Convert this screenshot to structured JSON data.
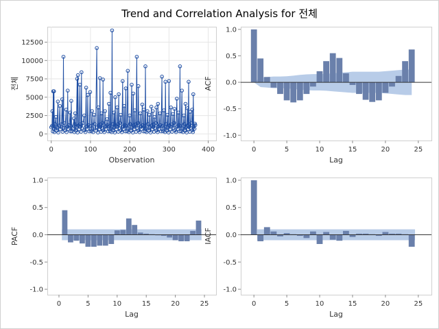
{
  "title": "Trend and Correlation Analysis for 전체",
  "chart_data": [
    {
      "id": "series",
      "type": "line",
      "xlabel": "Observation",
      "ylabel": "전체",
      "xlim": [
        -10,
        420
      ],
      "ylim": [
        -900,
        14600
      ],
      "xticks": [
        0,
        100,
        200,
        300,
        400
      ],
      "yticks": [
        0,
        2500,
        5000,
        7500,
        10000,
        12500
      ],
      "grid": true,
      "peaks": [
        [
          3,
          3100
        ],
        [
          5,
          5800
        ],
        [
          7,
          5800
        ],
        [
          12,
          2300
        ],
        [
          17,
          4400
        ],
        [
          22,
          3800
        ],
        [
          28,
          4700
        ],
        [
          31,
          10500
        ],
        [
          38,
          3300
        ],
        [
          42,
          5900
        ],
        [
          48,
          2900
        ],
        [
          51,
          4500
        ],
        [
          58,
          2100
        ],
        [
          61,
          2800
        ],
        [
          66,
          7500
        ],
        [
          68,
          8000
        ],
        [
          73,
          6700
        ],
        [
          77,
          8400
        ],
        [
          84,
          2500
        ],
        [
          89,
          6300
        ],
        [
          93,
          5300
        ],
        [
          99,
          5700
        ],
        [
          104,
          3100
        ],
        [
          109,
          2600
        ],
        [
          116,
          11700
        ],
        [
          120,
          3600
        ],
        [
          124,
          7600
        ],
        [
          128,
          2800
        ],
        [
          132,
          7400
        ],
        [
          137,
          3100
        ],
        [
          142,
          2000
        ],
        [
          147,
          4100
        ],
        [
          151,
          5600
        ],
        [
          155,
          14100
        ],
        [
          160,
          2900
        ],
        [
          163,
          5000
        ],
        [
          168,
          3600
        ],
        [
          172,
          5400
        ],
        [
          177,
          2600
        ],
        [
          182,
          7200
        ],
        [
          186,
          3800
        ],
        [
          190,
          6200
        ],
        [
          195,
          8600
        ],
        [
          200,
          2500
        ],
        [
          205,
          6700
        ],
        [
          209,
          5500
        ],
        [
          213,
          3200
        ],
        [
          218,
          10500
        ],
        [
          222,
          6500
        ],
        [
          227,
          2800
        ],
        [
          232,
          4000
        ],
        [
          236,
          3300
        ],
        [
          240,
          9200
        ],
        [
          245,
          3100
        ],
        [
          250,
          2600
        ],
        [
          255,
          3700
        ],
        [
          259,
          3100
        ],
        [
          263,
          2300
        ],
        [
          268,
          3600
        ],
        [
          272,
          4100
        ],
        [
          277,
          2800
        ],
        [
          282,
          7800
        ],
        [
          287,
          3200
        ],
        [
          291,
          7100
        ],
        [
          296,
          2600
        ],
        [
          300,
          7200
        ],
        [
          305,
          3600
        ],
        [
          310,
          2700
        ],
        [
          314,
          3400
        ],
        [
          320,
          4800
        ],
        [
          324,
          2900
        ],
        [
          328,
          9200
        ],
        [
          333,
          5900
        ],
        [
          338,
          2500
        ],
        [
          342,
          4100
        ],
        [
          347,
          3500
        ],
        [
          350,
          7100
        ],
        [
          354,
          3000
        ],
        [
          359,
          3300
        ],
        [
          362,
          5400
        ],
        [
          366,
          1400
        ]
      ],
      "baseline": [
        1100,
        350,
        750,
        250,
        1350,
        450,
        900,
        200,
        1150,
        650,
        1300,
        300,
        800,
        1500,
        500,
        250,
        1000,
        700,
        1200,
        350
      ]
    },
    {
      "id": "acf",
      "type": "bar",
      "xlabel": "Lag",
      "ylabel": "ACF",
      "xlim": [
        -2,
        27
      ],
      "ylim": [
        -1.1,
        1.05
      ],
      "xticks": [
        0,
        5,
        10,
        15,
        20,
        25
      ],
      "yticks": [
        -1.0,
        -0.5,
        0.0,
        0.5,
        1.0
      ],
      "lags": [
        0,
        1,
        2,
        3,
        4,
        5,
        6,
        7,
        8,
        9,
        10,
        11,
        12,
        13,
        14,
        15,
        16,
        17,
        18,
        19,
        20,
        21,
        22,
        23,
        24
      ],
      "values": [
        1.0,
        0.45,
        0.1,
        -0.1,
        -0.22,
        -0.34,
        -0.38,
        -0.34,
        -0.22,
        -0.08,
        0.21,
        0.4,
        0.55,
        0.46,
        0.17,
        -0.05,
        -0.22,
        -0.33,
        -0.37,
        -0.34,
        -0.2,
        -0.08,
        0.12,
        0.4,
        0.62
      ],
      "band_upper": [
        0.0,
        0.09,
        0.1,
        0.11,
        0.11,
        0.115,
        0.125,
        0.14,
        0.15,
        0.155,
        0.155,
        0.16,
        0.17,
        0.18,
        0.19,
        0.2,
        0.2,
        0.2,
        0.2,
        0.2,
        0.21,
        0.22,
        0.23,
        0.24,
        0.24
      ],
      "band_lower": [
        0.0,
        -0.09,
        -0.1,
        -0.11,
        -0.11,
        -0.115,
        -0.125,
        -0.14,
        -0.15,
        -0.155,
        -0.155,
        -0.16,
        -0.17,
        -0.18,
        -0.19,
        -0.2,
        -0.2,
        -0.2,
        -0.2,
        -0.2,
        -0.21,
        -0.22,
        -0.23,
        -0.24,
        -0.24
      ]
    },
    {
      "id": "pacf",
      "type": "bar",
      "xlabel": "Lag",
      "ylabel": "PACF",
      "xlim": [
        -2,
        27
      ],
      "ylim": [
        -1.1,
        1.05
      ],
      "xticks": [
        0,
        5,
        10,
        15,
        20,
        25
      ],
      "yticks": [
        -1.0,
        -0.5,
        0.0,
        0.5,
        1.0
      ],
      "lags": [
        1,
        2,
        3,
        4,
        5,
        6,
        7,
        8,
        9,
        10,
        11,
        12,
        13,
        14,
        15,
        16,
        17,
        18,
        19,
        20,
        21,
        22,
        23,
        24
      ],
      "values": [
        0.45,
        -0.14,
        -0.11,
        -0.16,
        -0.22,
        -0.22,
        -0.2,
        -0.2,
        -0.17,
        0.08,
        0.09,
        0.3,
        0.18,
        0.04,
        0.02,
        0.01,
        -0.01,
        -0.02,
        -0.05,
        -0.1,
        -0.12,
        -0.12,
        0.07,
        0.26
      ],
      "band": 0.1
    },
    {
      "id": "iacf",
      "type": "bar",
      "xlabel": "Lag",
      "ylabel": "IACF",
      "xlim": [
        -2,
        27
      ],
      "ylim": [
        -1.1,
        1.05
      ],
      "xticks": [
        0,
        5,
        10,
        15,
        20,
        25
      ],
      "yticks": [
        -1.0,
        -0.5,
        0.0,
        0.5,
        1.0
      ],
      "lags": [
        0,
        1,
        2,
        3,
        4,
        5,
        6,
        7,
        8,
        9,
        10,
        11,
        12,
        13,
        14,
        15,
        16,
        17,
        18,
        19,
        20,
        21,
        22,
        23,
        24
      ],
      "values": [
        1.0,
        -0.12,
        0.14,
        0.06,
        -0.03,
        0.03,
        0.01,
        -0.02,
        -0.06,
        0.06,
        -0.17,
        0.05,
        -0.09,
        -0.11,
        0.07,
        -0.04,
        0.02,
        0.02,
        0.01,
        -0.02,
        0.05,
        0.02,
        0.02,
        0.01,
        -0.22
      ],
      "band": 0.1
    }
  ],
  "colors": {
    "bar": "#6a80ab",
    "band": "#b8cce8",
    "series": "#1f4ea3"
  }
}
